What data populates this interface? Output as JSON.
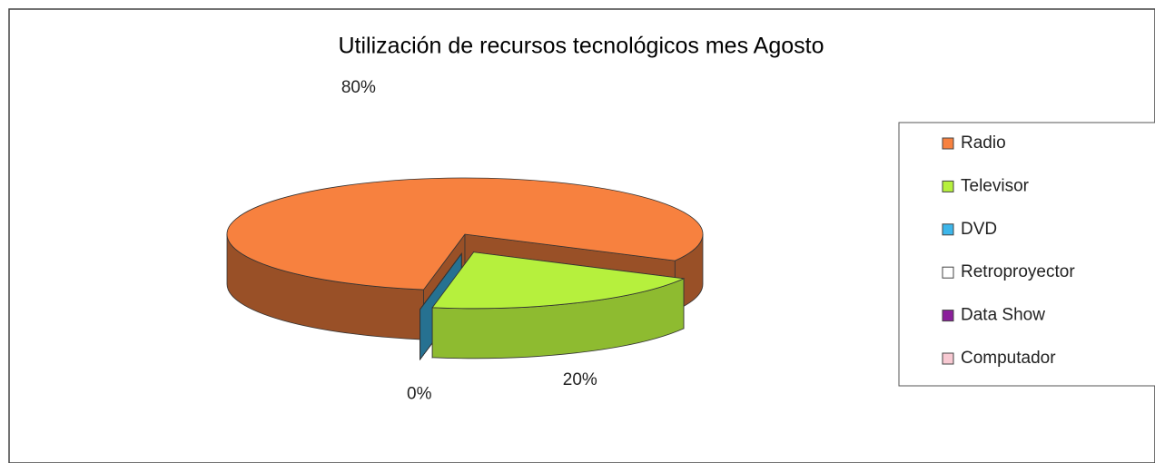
{
  "chart_data": {
    "type": "pie3d",
    "title": "Utilización de recursos tecnológicos mes Agosto",
    "categories": [
      "Radio",
      "Televisor",
      "DVD",
      "Retroproyector",
      "Data Show",
      "Computador"
    ],
    "values": [
      80,
      20,
      0,
      0,
      0,
      0
    ],
    "value_labels": [
      "80%",
      "20%",
      "0%",
      null,
      null,
      null
    ],
    "colors": [
      "#f7813f",
      "#b6f03d",
      "#3db6ea",
      "#ffffff",
      "#8b1f9b",
      "#f8c9d2"
    ],
    "legend": "right"
  }
}
